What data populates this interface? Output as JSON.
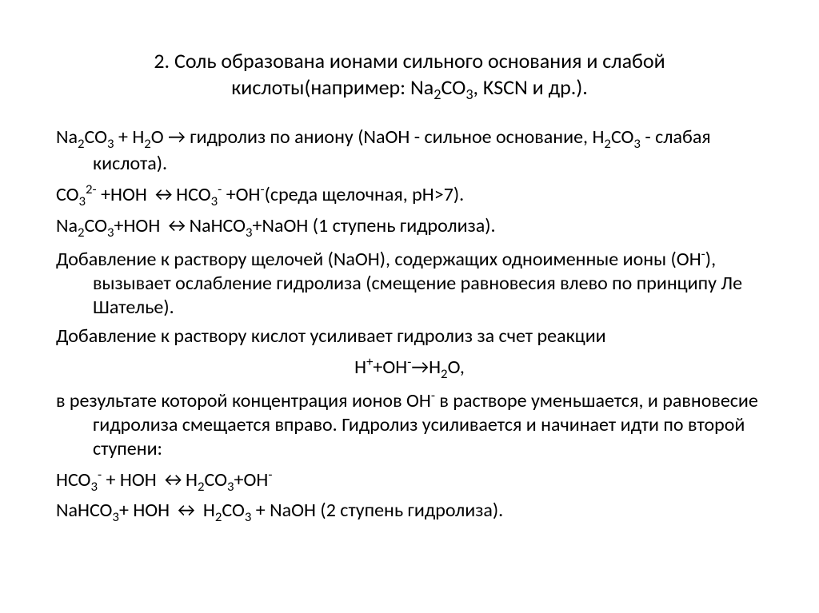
{
  "title_line1": "2. Соль образована ионами сильного основания и слабой",
  "title_line2_a": "кислоты(например: Na",
  "title_line2_b": "CO",
  "title_line2_c": ", KSCN и др.).",
  "p1_a": "Na",
  "p1_b": "CO",
  "p1_c": " + H",
  "p1_d": "O → гидролиз по аниону (NaOH - сильное",
  "p1_e": "основание, H",
  "p1_f": "CO",
  "p1_g": " - слабая кислота).",
  "p2_a": "CO",
  "p2_b": " +HOH ↔HCO",
  "p2_c": "   +OH",
  "p2_d": "(среда щелочная, рН>7).",
  "p3_a": "Na",
  "p3_b": "CO",
  "p3_c": "+HOH ↔NaHCO",
  "p3_d": "+NaOH      (1 ступень гидролиза).",
  "p4_a": "Добавление  к раствору щелочей (NaOH),  содержащих",
  "p4_b": "одноименные ионы (OH",
  "p4_c": "), вызывает ослабление гидролиза",
  "p4_d": "(смещение равновесия влево по принципу Ле Шателье).",
  "p5_a": " Добавление к раствору кислот усиливает гидролиз за счет",
  "p5_b": "реакции",
  "p6_a": "H",
  "p6_b": "+OH",
  "p6_c": "→H",
  "p6_d": "O,",
  "p7_a": " в результате которой концентрация ионов OH",
  "p7_b": " в растворе",
  "p7_c": "уменьшается, и равновесие гидролиза смещается вправо.",
  "p7_d": "Гидролиз усиливается и начинает идти по второй ступени:",
  "p8_a": "HCO",
  "p8_b": " + HOH ↔H",
  "p8_c": "CO",
  "p8_d": "+OH",
  "p9_a": "NaHCO",
  "p9_b": "+ HOH ↔ H",
  "p9_c": "CO",
  "p9_d": " + NaOH     (2 ступень гидролиза).",
  "s2": "2",
  "s3": "3",
  "s2m": "2-",
  "s3m": "3-",
  "sminus": "-",
  "splus": "+"
}
